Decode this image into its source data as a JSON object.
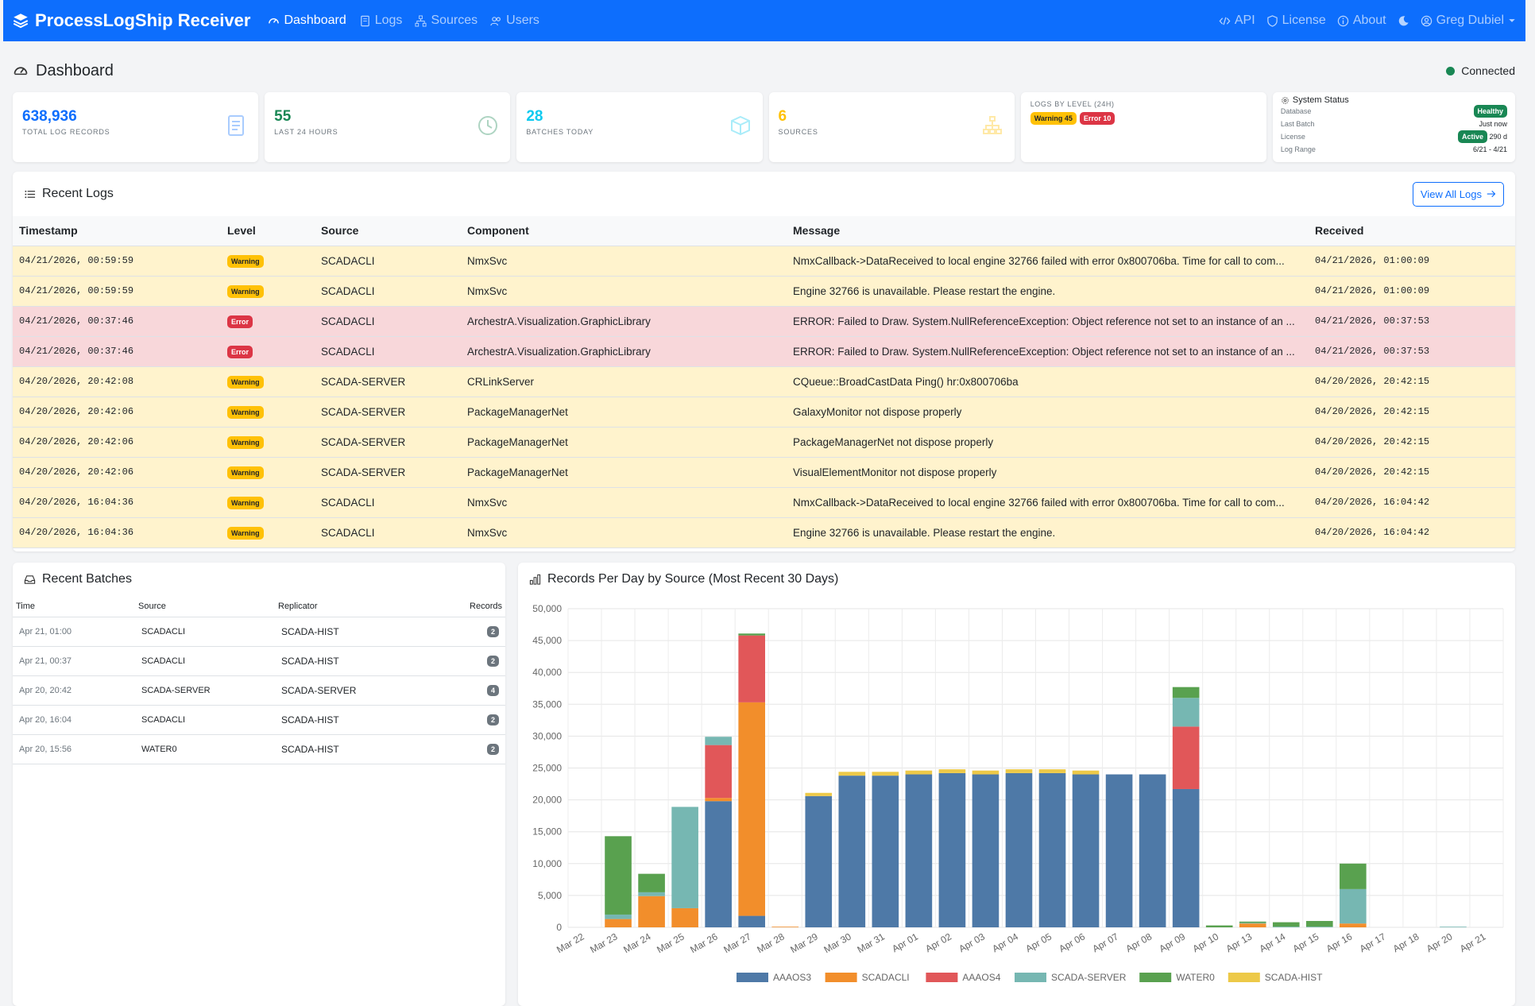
{
  "nav": {
    "brand": "ProcessLogShip Receiver",
    "links": [
      "Dashboard",
      "Logs",
      "Sources",
      "Users"
    ],
    "api": "API",
    "license": "License",
    "about": "About",
    "user": "Greg Dubiel"
  },
  "header": {
    "title": "Dashboard",
    "status": "Connected"
  },
  "stats": {
    "total": {
      "value": "638,936",
      "label": "TOTAL LOG RECORDS",
      "color": "#0d6efd"
    },
    "last24": {
      "value": "55",
      "label": "LAST 24 HOURS",
      "color": "#198754"
    },
    "batches": {
      "value": "28",
      "label": "BATCHES TODAY",
      "color": "#0dcaf0"
    },
    "sources": {
      "value": "6",
      "label": "SOURCES",
      "color": "#ffc107"
    },
    "levels": {
      "title": "LOGS BY LEVEL (24H)",
      "warning": "Warning 45",
      "error": "Error 10"
    },
    "system": {
      "title": "System Status",
      "database_label": "Database",
      "database_value": "Healthy",
      "last_batch_label": "Last Batch",
      "last_batch_value": "Just now",
      "license_label": "License",
      "license_badge": "Active",
      "license_value": "290 d",
      "range_label": "Log Range",
      "range_value": "6/21 - 4/21"
    }
  },
  "recent_logs": {
    "title": "Recent Logs",
    "view_all": "View All Logs",
    "columns": [
      "Timestamp",
      "Level",
      "Source",
      "Component",
      "Message",
      "Received"
    ],
    "rows": [
      {
        "ts": "04/21/2026, 00:59:59",
        "level": "Warning",
        "source": "SCADACLI",
        "component": "NmxSvc",
        "message": "NmxCallback->DataReceived to local engine 32766 failed with error 0x800706ba. Time for call to com...",
        "received": "04/21/2026, 01:00:09"
      },
      {
        "ts": "04/21/2026, 00:59:59",
        "level": "Warning",
        "source": "SCADACLI",
        "component": "NmxSvc",
        "message": "Engine 32766 is unavailable. Please restart the engine.",
        "received": "04/21/2026, 01:00:09"
      },
      {
        "ts": "04/21/2026, 00:37:46",
        "level": "Error",
        "source": "SCADACLI",
        "component": "ArchestrA.Visualization.GraphicLibrary",
        "message": "ERROR: Failed to Draw. System.NullReferenceException: Object reference not set to an instance of an ...",
        "received": "04/21/2026, 00:37:53"
      },
      {
        "ts": "04/21/2026, 00:37:46",
        "level": "Error",
        "source": "SCADACLI",
        "component": "ArchestrA.Visualization.GraphicLibrary",
        "message": "ERROR: Failed to Draw. System.NullReferenceException: Object reference not set to an instance of an ...",
        "received": "04/21/2026, 00:37:53"
      },
      {
        "ts": "04/20/2026, 20:42:08",
        "level": "Warning",
        "source": "SCADA-SERVER",
        "component": "CRLinkServer",
        "message": "CQueue::BroadCastData Ping() hr:0x800706ba",
        "received": "04/20/2026, 20:42:15"
      },
      {
        "ts": "04/20/2026, 20:42:06",
        "level": "Warning",
        "source": "SCADA-SERVER",
        "component": "PackageManagerNet",
        "message": "GalaxyMonitor not dispose properly",
        "received": "04/20/2026, 20:42:15"
      },
      {
        "ts": "04/20/2026, 20:42:06",
        "level": "Warning",
        "source": "SCADA-SERVER",
        "component": "PackageManagerNet",
        "message": "PackageManagerNet not dispose properly",
        "received": "04/20/2026, 20:42:15"
      },
      {
        "ts": "04/20/2026, 20:42:06",
        "level": "Warning",
        "source": "SCADA-SERVER",
        "component": "PackageManagerNet",
        "message": "VisualElementMonitor not dispose properly",
        "received": "04/20/2026, 20:42:15"
      },
      {
        "ts": "04/20/2026, 16:04:36",
        "level": "Warning",
        "source": "SCADACLI",
        "component": "NmxSvc",
        "message": "NmxCallback->DataReceived to local engine 32766 failed with error 0x800706ba. Time for call to com...",
        "received": "04/20/2026, 16:04:42"
      },
      {
        "ts": "04/20/2026, 16:04:36",
        "level": "Warning",
        "source": "SCADACLI",
        "component": "NmxSvc",
        "message": "Engine 32766 is unavailable. Please restart the engine.",
        "received": "04/20/2026, 16:04:42"
      }
    ]
  },
  "recent_batches": {
    "title": "Recent Batches",
    "columns": [
      "Time",
      "Source",
      "Replicator",
      "Records"
    ],
    "rows": [
      {
        "time": "Apr 21, 01:00",
        "source": "SCADACLI",
        "replicator": "SCADA-HIST",
        "records": "2"
      },
      {
        "time": "Apr 21, 00:37",
        "source": "SCADACLI",
        "replicator": "SCADA-HIST",
        "records": "2"
      },
      {
        "time": "Apr 20, 20:42",
        "source": "SCADA-SERVER",
        "replicator": "SCADA-SERVER",
        "records": "4"
      },
      {
        "time": "Apr 20, 16:04",
        "source": "SCADACLI",
        "replicator": "SCADA-HIST",
        "records": "2"
      },
      {
        "time": "Apr 20, 15:56",
        "source": "WATER0",
        "replicator": "SCADA-HIST",
        "records": "2"
      }
    ]
  },
  "chart_data": {
    "type": "bar",
    "stacked": true,
    "title": "Records Per Day by Source (Most Recent 30 Days)",
    "categories": [
      "Mar 22",
      "Mar 23",
      "Mar 24",
      "Mar 25",
      "Mar 26",
      "Mar 27",
      "Mar 28",
      "Mar 29",
      "Mar 30",
      "Mar 31",
      "Apr 01",
      "Apr 02",
      "Apr 03",
      "Apr 04",
      "Apr 05",
      "Apr 06",
      "Apr 07",
      "Apr 08",
      "Apr 09",
      "Apr 10",
      "Apr 13",
      "Apr 14",
      "Apr 15",
      "Apr 16",
      "Apr 17",
      "Apr 18",
      "Apr 20",
      "Apr 21"
    ],
    "ylim": [
      0,
      50000
    ],
    "yticks": [
      "0",
      "5,000",
      "10,000",
      "15,000",
      "20,000",
      "25,000",
      "30,000",
      "35,000",
      "40,000",
      "45,000",
      "50,000"
    ],
    "legend_position": "bottom",
    "grid": true,
    "series": [
      {
        "name": "AAAOS3",
        "color": "#4e79a7",
        "values": [
          0,
          0,
          0,
          0,
          19800,
          1800,
          0,
          20600,
          23800,
          23800,
          24000,
          24200,
          24000,
          24200,
          24200,
          24000,
          24000,
          24000,
          21700,
          0,
          0,
          0,
          0,
          0,
          0,
          0,
          0,
          0
        ]
      },
      {
        "name": "SCADACLI",
        "color": "#f28e2b",
        "values": [
          0,
          1300,
          4900,
          3000,
          500,
          33500,
          100,
          0,
          0,
          0,
          0,
          0,
          0,
          0,
          0,
          0,
          0,
          0,
          0,
          0,
          600,
          0,
          0,
          600,
          0,
          0,
          0,
          0
        ]
      },
      {
        "name": "AAAOS4",
        "color": "#e15759",
        "values": [
          0,
          0,
          0,
          0,
          8300,
          10500,
          0,
          0,
          0,
          0,
          0,
          0,
          0,
          0,
          0,
          0,
          0,
          0,
          9800,
          0,
          0,
          0,
          0,
          0,
          0,
          0,
          0,
          0
        ]
      },
      {
        "name": "SCADA-SERVER",
        "color": "#76b7b2",
        "values": [
          0,
          700,
          600,
          15900,
          1300,
          0,
          0,
          0,
          0,
          0,
          0,
          0,
          0,
          0,
          0,
          0,
          0,
          0,
          4500,
          0,
          100,
          100,
          100,
          5400,
          0,
          0,
          100,
          0
        ]
      },
      {
        "name": "WATER0",
        "color": "#59a14f",
        "values": [
          0,
          12300,
          2900,
          0,
          0,
          300,
          0,
          0,
          0,
          0,
          0,
          0,
          0,
          0,
          0,
          0,
          0,
          0,
          1700,
          300,
          200,
          700,
          900,
          4000,
          0,
          0,
          0,
          0
        ]
      },
      {
        "name": "SCADA-HIST",
        "color": "#edc948",
        "values": [
          0,
          0,
          0,
          0,
          0,
          0,
          0,
          500,
          600,
          600,
          600,
          600,
          600,
          600,
          600,
          600,
          0,
          0,
          0,
          0,
          0,
          0,
          0,
          0,
          0,
          0,
          0,
          0
        ]
      }
    ]
  }
}
